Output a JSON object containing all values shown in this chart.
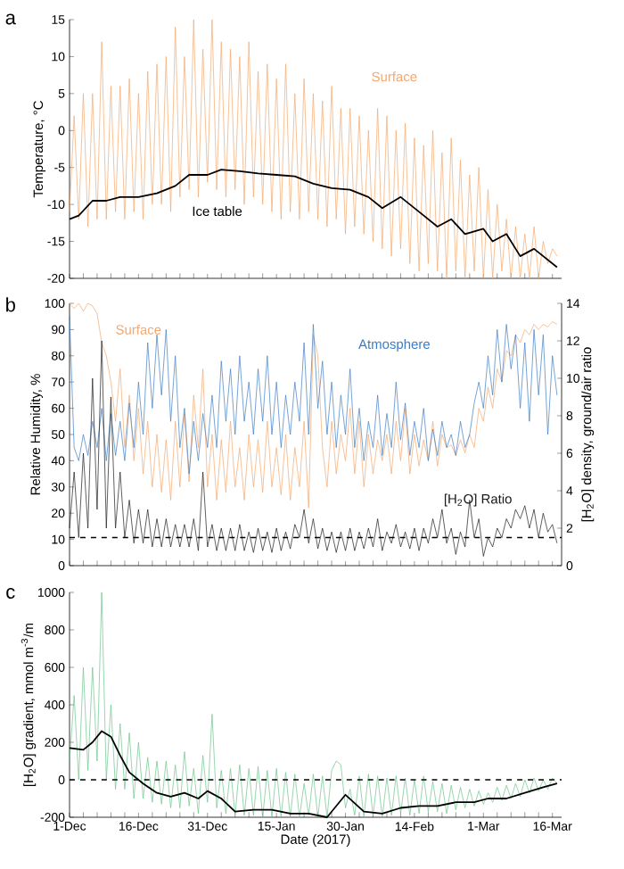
{
  "chart_data": [
    {
      "type": "line",
      "title": "a",
      "ylabel": "Temperature, °C",
      "xlim": [
        "2016-12-01",
        "2017-03-18"
      ],
      "ylim": [
        -20,
        15
      ],
      "yticks": [
        -20,
        -15,
        -10,
        -5,
        0,
        5,
        10,
        15
      ],
      "tick_labels": "y",
      "xticks": [
        {
          "value": "2016-12-01",
          "label": null
        },
        {
          "value": "2016-12-16",
          "label": null
        },
        {
          "value": "2016-12-31",
          "label": null
        },
        {
          "value": "2017-01-15",
          "label": null
        },
        {
          "value": "2017-01-30",
          "label": null
        },
        {
          "value": "2017-02-14",
          "label": null
        },
        {
          "value": "2017-03-01",
          "label": null
        },
        {
          "value": "2017-03-16",
          "label": null
        }
      ],
      "x": [
        "2016-12-01",
        "2016-12-02",
        "2016-12-03",
        "2016-12-04",
        "2016-12-05",
        "2016-12-06",
        "2016-12-07",
        "2016-12-08",
        "2016-12-09",
        "2016-12-10",
        "2016-12-11",
        "2016-12-12",
        "2016-12-13",
        "2016-12-14",
        "2016-12-15",
        "2016-12-16",
        "2016-12-17",
        "2016-12-18",
        "2016-12-19",
        "2016-12-20",
        "2016-12-21",
        "2016-12-22",
        "2016-12-23",
        "2016-12-24",
        "2016-12-25",
        "2016-12-26",
        "2016-12-27",
        "2016-12-28",
        "2016-12-29",
        "2016-12-30",
        "2016-12-31",
        "2017-01-01",
        "2017-01-02",
        "2017-01-03",
        "2017-01-04",
        "2017-01-05",
        "2017-01-06",
        "2017-01-07",
        "2017-01-08",
        "2017-01-09",
        "2017-01-10",
        "2017-01-11",
        "2017-01-12",
        "2017-01-13",
        "2017-01-14",
        "2017-01-15",
        "2017-01-16",
        "2017-01-17",
        "2017-01-18",
        "2017-01-19",
        "2017-01-20",
        "2017-01-21",
        "2017-01-22",
        "2017-01-23",
        "2017-01-24",
        "2017-01-25",
        "2017-01-26",
        "2017-01-27",
        "2017-01-28",
        "2017-01-29",
        "2017-01-30",
        "2017-01-31",
        "2017-02-01",
        "2017-02-02",
        "2017-02-03",
        "2017-02-04",
        "2017-02-05",
        "2017-02-06",
        "2017-02-07",
        "2017-02-08",
        "2017-02-09",
        "2017-02-10",
        "2017-02-11",
        "2017-02-12",
        "2017-02-13",
        "2017-02-14",
        "2017-02-15",
        "2017-02-16",
        "2017-02-17",
        "2017-02-18",
        "2017-02-19",
        "2017-02-20",
        "2017-02-21",
        "2017-02-22",
        "2017-02-23",
        "2017-02-24",
        "2017-02-25",
        "2017-02-26",
        "2017-02-27",
        "2017-02-28",
        "2017-03-01",
        "2017-03-02",
        "2017-03-03",
        "2017-03-04",
        "2017-03-05",
        "2017-03-06",
        "2017-03-07",
        "2017-03-08",
        "2017-03-09",
        "2017-03-10",
        "2017-03-11",
        "2017-03-12",
        "2017-03-13",
        "2017-03-14",
        "2017-03-15",
        "2017-03-16",
        "2017-03-17"
      ],
      "series": [
        {
          "name": "Surface",
          "color": "#f4a76c",
          "values": [
            -11,
            2,
            -12,
            5,
            -13,
            5,
            -12,
            12,
            -12,
            6,
            -11,
            6,
            -12,
            7,
            -11,
            5,
            -12,
            8,
            -10,
            9,
            -10,
            10,
            -11,
            14,
            -9,
            10,
            -8,
            15,
            -9,
            11,
            -7,
            15,
            -8,
            12,
            -9,
            11,
            -8,
            10,
            -10,
            12,
            -9,
            8,
            -10,
            9,
            -11,
            7,
            -12,
            9,
            -11,
            5,
            -12,
            7,
            -11,
            5,
            -12,
            4,
            -13,
            6,
            -12,
            3,
            -14,
            3,
            -13,
            2,
            -14,
            0,
            -15,
            3,
            -16,
            2,
            -17,
            0,
            -16,
            1,
            -18,
            -1,
            -19,
            -2,
            -18,
            0,
            -19,
            -3,
            -20,
            -1,
            -19,
            -4,
            -20,
            -6,
            -19,
            -5,
            -20,
            -8,
            -20,
            -10,
            -19,
            -12,
            -20,
            -13,
            -20,
            -14,
            -20,
            -13,
            -20,
            -15,
            -18,
            -16,
            -17
          ]
        },
        {
          "name": "Ice table",
          "color": "#000000",
          "x": [
            "2016-12-01",
            "2016-12-03",
            "2016-12-06",
            "2016-12-09",
            "2016-12-12",
            "2016-12-16",
            "2016-12-20",
            "2016-12-24",
            "2016-12-27",
            "2016-12-31",
            "2017-01-03",
            "2017-01-07",
            "2017-01-11",
            "2017-01-15",
            "2017-01-19",
            "2017-01-23",
            "2017-01-27",
            "2017-01-31",
            "2017-02-04",
            "2017-02-07",
            "2017-02-11",
            "2017-02-15",
            "2017-02-19",
            "2017-02-22",
            "2017-02-25",
            "2017-03-01",
            "2017-03-03",
            "2017-03-06",
            "2017-03-09",
            "2017-03-12",
            "2017-03-17"
          ],
          "values": [
            -12,
            -11.5,
            -9.5,
            -9.5,
            -9,
            -9,
            -8.5,
            -7.5,
            -6,
            -6,
            -5.3,
            -5.5,
            -5.8,
            -6,
            -6.2,
            -7.2,
            -7.8,
            -8,
            -9,
            -10.5,
            -9,
            -11,
            -13,
            -12,
            -14,
            -13.3,
            -15,
            -14,
            -17,
            -16,
            -18.5
          ]
        }
      ]
    },
    {
      "type": "line",
      "title": "b",
      "ylabel": "Relative Humidity, %",
      "y2label": "[H$_{2}$O] density, ground/air ratio",
      "xlim": [
        "2016-12-01",
        "2017-03-18"
      ],
      "ylim": [
        0,
        100
      ],
      "yticks": [
        0,
        10,
        20,
        30,
        40,
        50,
        60,
        70,
        80,
        90,
        100
      ],
      "y2lim": [
        0,
        14
      ],
      "y2ticks": [
        0,
        2,
        4,
        6,
        8,
        10,
        12,
        14
      ],
      "tick_labels": "y",
      "xticks": [
        {
          "value": "2016-12-01",
          "label": null
        },
        {
          "value": "2016-12-16",
          "label": null
        },
        {
          "value": "2016-12-31",
          "label": null
        },
        {
          "value": "2017-01-15",
          "label": null
        },
        {
          "value": "2017-01-30",
          "label": null
        },
        {
          "value": "2017-02-14",
          "label": null
        },
        {
          "value": "2017-03-01",
          "label": null
        },
        {
          "value": "2017-03-16",
          "label": null
        }
      ],
      "x": [
        "2016-12-01",
        "2016-12-02",
        "2016-12-03",
        "2016-12-04",
        "2016-12-05",
        "2016-12-06",
        "2016-12-07",
        "2016-12-08",
        "2016-12-09",
        "2016-12-10",
        "2016-12-11",
        "2016-12-12",
        "2016-12-13",
        "2016-12-14",
        "2016-12-15",
        "2016-12-16",
        "2016-12-17",
        "2016-12-18",
        "2016-12-19",
        "2016-12-20",
        "2016-12-21",
        "2016-12-22",
        "2016-12-23",
        "2016-12-24",
        "2016-12-25",
        "2016-12-26",
        "2016-12-27",
        "2016-12-28",
        "2016-12-29",
        "2016-12-30",
        "2016-12-31",
        "2017-01-01",
        "2017-01-02",
        "2017-01-03",
        "2017-01-04",
        "2017-01-05",
        "2017-01-06",
        "2017-01-07",
        "2017-01-08",
        "2017-01-09",
        "2017-01-10",
        "2017-01-11",
        "2017-01-12",
        "2017-01-13",
        "2017-01-14",
        "2017-01-15",
        "2017-01-16",
        "2017-01-17",
        "2017-01-18",
        "2017-01-19",
        "2017-01-20",
        "2017-01-21",
        "2017-01-22",
        "2017-01-23",
        "2017-01-24",
        "2017-01-25",
        "2017-01-26",
        "2017-01-27",
        "2017-01-28",
        "2017-01-29",
        "2017-01-30",
        "2017-01-31",
        "2017-02-01",
        "2017-02-02",
        "2017-02-03",
        "2017-02-04",
        "2017-02-05",
        "2017-02-06",
        "2017-02-07",
        "2017-02-08",
        "2017-02-09",
        "2017-02-10",
        "2017-02-11",
        "2017-02-12",
        "2017-02-13",
        "2017-02-14",
        "2017-02-15",
        "2017-02-16",
        "2017-02-17",
        "2017-02-18",
        "2017-02-19",
        "2017-02-20",
        "2017-02-21",
        "2017-02-22",
        "2017-02-23",
        "2017-02-24",
        "2017-02-25",
        "2017-02-26",
        "2017-02-27",
        "2017-02-28",
        "2017-03-01",
        "2017-03-02",
        "2017-03-03",
        "2017-03-04",
        "2017-03-05",
        "2017-03-06",
        "2017-03-07",
        "2017-03-08",
        "2017-03-09",
        "2017-03-10",
        "2017-03-11",
        "2017-03-12",
        "2017-03-13",
        "2017-03-14",
        "2017-03-15",
        "2017-03-16",
        "2017-03-17"
      ],
      "ref_lines": [
        {
          "axis": "y2",
          "value": 1.5,
          "color": "#000000",
          "line_style": "dashed"
        }
      ],
      "series": [
        {
          "name": "Surface",
          "color": "#f4a76c",
          "values": [
            100,
            98,
            100,
            97,
            100,
            99,
            96,
            85,
            80,
            70,
            55,
            75,
            45,
            65,
            40,
            60,
            35,
            55,
            30,
            50,
            28,
            48,
            25,
            55,
            30,
            58,
            32,
            65,
            45,
            75,
            30,
            50,
            25,
            48,
            28,
            55,
            30,
            45,
            25,
            50,
            30,
            48,
            28,
            55,
            30,
            45,
            27,
            50,
            25,
            45,
            30,
            55,
            22,
            88,
            80,
            45,
            30,
            55,
            35,
            50,
            40,
            60,
            35,
            55,
            30,
            50,
            35,
            48,
            40,
            50,
            35,
            55,
            40,
            60,
            35,
            50,
            38,
            48,
            40,
            55,
            38,
            50,
            45,
            46,
            42,
            48,
            43,
            50,
            45,
            60,
            55,
            68,
            60,
            75,
            70,
            82,
            80,
            88,
            85,
            90,
            88,
            92,
            90,
            92,
            91,
            93,
            92
          ]
        },
        {
          "name": "Atmosphere",
          "color": "#3d7cc4",
          "values": [
            95,
            45,
            40,
            50,
            42,
            55,
            45,
            60,
            40,
            58,
            42,
            55,
            40,
            62,
            45,
            70,
            50,
            85,
            60,
            88,
            65,
            90,
            55,
            80,
            45,
            60,
            35,
            55,
            40,
            58,
            45,
            65,
            45,
            78,
            55,
            75,
            50,
            80,
            55,
            70,
            50,
            75,
            55,
            80,
            50,
            70,
            45,
            65,
            50,
            70,
            55,
            85,
            50,
            92,
            60,
            78,
            50,
            70,
            45,
            65,
            50,
            75,
            45,
            60,
            40,
            55,
            45,
            65,
            42,
            58,
            45,
            70,
            48,
            62,
            42,
            55,
            45,
            60,
            40,
            52,
            42,
            55,
            45,
            50,
            42,
            55,
            45,
            50,
            62,
            70,
            60,
            80,
            65,
            90,
            70,
            92,
            75,
            88,
            60,
            85,
            55,
            90,
            65,
            88,
            50,
            80,
            65
          ]
        },
        {
          "name": "[H$_{2}$O] Ratio",
          "color": "#1a1a1a",
          "axis": "y2",
          "values": [
            2,
            5,
            1.5,
            6,
            2,
            10,
            3,
            12,
            2,
            9,
            2,
            5,
            1.5,
            3.5,
            1.2,
            3,
            1.2,
            3,
            1,
            2.5,
            1,
            2.5,
            1,
            2.2,
            1,
            2.2,
            1,
            2.5,
            0.8,
            5,
            1,
            2.2,
            0.8,
            2,
            0.8,
            2,
            0.8,
            2.2,
            0.8,
            1.8,
            0.7,
            2,
            0.8,
            1.8,
            0.7,
            2,
            0.8,
            1.8,
            0.9,
            2.2,
            1.5,
            3,
            1.2,
            2.5,
            0.9,
            2,
            0.8,
            1.8,
            0.7,
            1.8,
            0.8,
            2,
            0.8,
            1.8,
            0.9,
            2,
            1,
            2.5,
            0.8,
            1.8,
            1.2,
            2.2,
            1,
            1.8,
            0.9,
            2,
            0.8,
            2,
            1.2,
            2.5,
            1.5,
            3,
            1.2,
            2,
            0.6,
            1.8,
            1,
            3.5,
            1.5,
            2.5,
            0.5,
            1.5,
            1,
            2,
            1.5,
            2.5,
            2,
            3,
            2.5,
            3.2,
            2,
            3,
            1.5,
            2.8,
            1.8,
            2.2,
            1.2
          ]
        }
      ]
    },
    {
      "type": "line",
      "title": "c",
      "xlabel": "Date (2017)",
      "ylabel": "[H$_{2}$O] gradient, mmol m$^{-3}$/m",
      "xlim": [
        "2016-12-01",
        "2017-03-18"
      ],
      "ylim": [
        -200,
        1000
      ],
      "yticks": [
        -200,
        0,
        200,
        400,
        600,
        800,
        1000
      ],
      "xticks": [
        {
          "value": "2016-12-01",
          "label": "1-Dec"
        },
        {
          "value": "2016-12-16",
          "label": "16-Dec"
        },
        {
          "value": "2016-12-31",
          "label": "31-Dec"
        },
        {
          "value": "2017-01-15",
          "label": "15-Jan"
        },
        {
          "value": "2017-01-30",
          "label": "30-Jan"
        },
        {
          "value": "2017-02-14",
          "label": "14-Feb"
        },
        {
          "value": "2017-03-01",
          "label": "1-Mar"
        },
        {
          "value": "2017-03-16",
          "label": "16-Mar"
        }
      ],
      "x": [
        "2016-12-01",
        "2016-12-02",
        "2016-12-03",
        "2016-12-04",
        "2016-12-05",
        "2016-12-06",
        "2016-12-07",
        "2016-12-08",
        "2016-12-09",
        "2016-12-10",
        "2016-12-11",
        "2016-12-12",
        "2016-12-13",
        "2016-12-14",
        "2016-12-15",
        "2016-12-16",
        "2016-12-17",
        "2016-12-18",
        "2016-12-19",
        "2016-12-20",
        "2016-12-21",
        "2016-12-22",
        "2016-12-23",
        "2016-12-24",
        "2016-12-25",
        "2016-12-26",
        "2016-12-27",
        "2016-12-28",
        "2016-12-29",
        "2016-12-30",
        "2016-12-31",
        "2017-01-01",
        "2017-01-02",
        "2017-01-03",
        "2017-01-04",
        "2017-01-05",
        "2017-01-06",
        "2017-01-07",
        "2017-01-08",
        "2017-01-09",
        "2017-01-10",
        "2017-01-11",
        "2017-01-12",
        "2017-01-13",
        "2017-01-14",
        "2017-01-15",
        "2017-01-16",
        "2017-01-17",
        "2017-01-18",
        "2017-01-19",
        "2017-01-20",
        "2017-01-21",
        "2017-01-22",
        "2017-01-23",
        "2017-01-24",
        "2017-01-25",
        "2017-01-26",
        "2017-01-27",
        "2017-01-28",
        "2017-01-29",
        "2017-01-30",
        "2017-01-31",
        "2017-02-01",
        "2017-02-02",
        "2017-02-03",
        "2017-02-04",
        "2017-02-05",
        "2017-02-06",
        "2017-02-07",
        "2017-02-08",
        "2017-02-09",
        "2017-02-10",
        "2017-02-11",
        "2017-02-12",
        "2017-02-13",
        "2017-02-14",
        "2017-02-15",
        "2017-02-16",
        "2017-02-17",
        "2017-02-18",
        "2017-02-19",
        "2017-02-20",
        "2017-02-21",
        "2017-02-22",
        "2017-02-23",
        "2017-02-24",
        "2017-02-25",
        "2017-02-26",
        "2017-02-27",
        "2017-02-28",
        "2017-03-01",
        "2017-03-02",
        "2017-03-03",
        "2017-03-04",
        "2017-03-05",
        "2017-03-06",
        "2017-03-07",
        "2017-03-08",
        "2017-03-09",
        "2017-03-10",
        "2017-03-11",
        "2017-03-12",
        "2017-03-13",
        "2017-03-14",
        "2017-03-15",
        "2017-03-16",
        "2017-03-17"
      ],
      "ref_lines": [
        {
          "axis": "y",
          "value": 0,
          "color": "#000000",
          "line_style": "dashed"
        }
      ],
      "series": [
        {
          "color": "#6cc48a",
          "values": [
            100,
            450,
            0,
            600,
            50,
            600,
            100,
            1000,
            0,
            400,
            -50,
            300,
            -50,
            250,
            -100,
            200,
            -100,
            120,
            -120,
            100,
            -130,
            100,
            -150,
            80,
            -150,
            150,
            -140,
            60,
            -180,
            130,
            -120,
            350,
            -150,
            50,
            -180,
            60,
            -190,
            80,
            -190,
            60,
            -190,
            70,
            -200,
            50,
            -200,
            60,
            -200,
            40,
            -200,
            30,
            -200,
            -20,
            -190,
            30,
            -200,
            20,
            -200,
            50,
            100,
            80,
            -150,
            -50,
            -190,
            20,
            -200,
            30,
            -190,
            20,
            -200,
            10,
            -190,
            20,
            -180,
            10,
            -190,
            0,
            -180,
            20,
            -170,
            -10,
            -170,
            -20,
            -180,
            -30,
            -160,
            -40,
            -150,
            -50,
            -140,
            -60,
            -130,
            -70,
            -120,
            -40,
            -110,
            -30,
            -100,
            -20,
            -90,
            0,
            -70,
            10,
            -60,
            0,
            -50,
            10,
            -20
          ]
        },
        {
          "color": "#000000",
          "x": [
            "2016-12-01",
            "2016-12-04",
            "2016-12-06",
            "2016-12-08",
            "2016-12-10",
            "2016-12-12",
            "2016-12-14",
            "2016-12-17",
            "2016-12-20",
            "2016-12-23",
            "2016-12-26",
            "2016-12-29",
            "2016-12-31",
            "2017-01-03",
            "2017-01-06",
            "2017-01-10",
            "2017-01-14",
            "2017-01-18",
            "2017-01-22",
            "2017-01-26",
            "2017-01-30",
            "2017-02-03",
            "2017-02-07",
            "2017-02-11",
            "2017-02-15",
            "2017-02-19",
            "2017-02-23",
            "2017-02-27",
            "2017-03-02",
            "2017-03-06",
            "2017-03-10",
            "2017-03-14",
            "2017-03-17"
          ],
          "values": [
            170,
            160,
            200,
            260,
            230,
            130,
            40,
            -20,
            -70,
            -90,
            -70,
            -100,
            -60,
            -100,
            -170,
            -160,
            -160,
            -180,
            -180,
            -200,
            -80,
            -170,
            -180,
            -150,
            -140,
            -140,
            -120,
            -120,
            -100,
            -100,
            -70,
            -40,
            -20
          ]
        }
      ]
    }
  ]
}
